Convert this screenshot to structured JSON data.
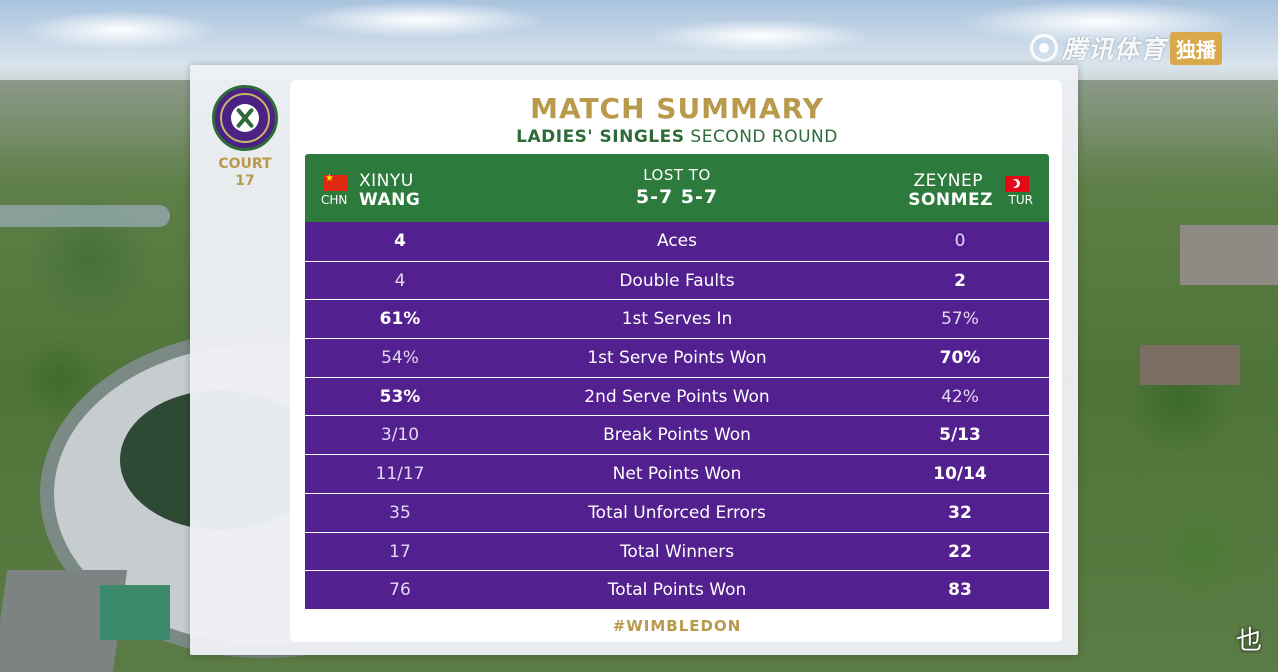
{
  "watermark": {
    "text": "腾讯体育",
    "badge": "独播"
  },
  "corner_glyph": "也",
  "logo": {
    "label": "THE CHAMPIONSHIPS WIMBLEDON"
  },
  "court": {
    "line1": "COURT",
    "line2": "17"
  },
  "title": "MATCH SUMMARY",
  "subtitle": {
    "bold": "LADIES' SINGLES",
    "rest": "SECOND ROUND"
  },
  "players": {
    "left": {
      "first": "XINYU",
      "last": "WANG",
      "country": "CHN"
    },
    "right": {
      "first": "ZEYNEP",
      "last": "SONMEZ",
      "country": "TUR"
    }
  },
  "result": {
    "status": "LOST TO",
    "score": "5-7 5-7"
  },
  "stats": [
    {
      "label": "Aces",
      "left": "4",
      "right": "0",
      "leader": "left"
    },
    {
      "label": "Double Faults",
      "left": "4",
      "right": "2",
      "leader": "right"
    },
    {
      "label": "1st Serves In",
      "left": "61%",
      "right": "57%",
      "leader": "left"
    },
    {
      "label": "1st Serve Points Won",
      "left": "54%",
      "right": "70%",
      "leader": "right"
    },
    {
      "label": "2nd Serve Points Won",
      "left": "53%",
      "right": "42%",
      "leader": "left"
    },
    {
      "label": "Break Points Won",
      "left": "3/10",
      "right": "5/13",
      "leader": "right"
    },
    {
      "label": "Net Points Won",
      "left": "11/17",
      "right": "10/14",
      "leader": "right"
    },
    {
      "label": "Total Unforced Errors",
      "left": "35",
      "right": "32",
      "leader": "right"
    },
    {
      "label": "Total Winners",
      "left": "17",
      "right": "22",
      "leader": "right"
    },
    {
      "label": "Total Points Won",
      "left": "76",
      "right": "83",
      "leader": "right"
    }
  ],
  "hashtag": "#WIMBLEDON",
  "colors": {
    "purple": "#53208f",
    "green": "#2d7a3d",
    "gold": "#b99a4c"
  }
}
